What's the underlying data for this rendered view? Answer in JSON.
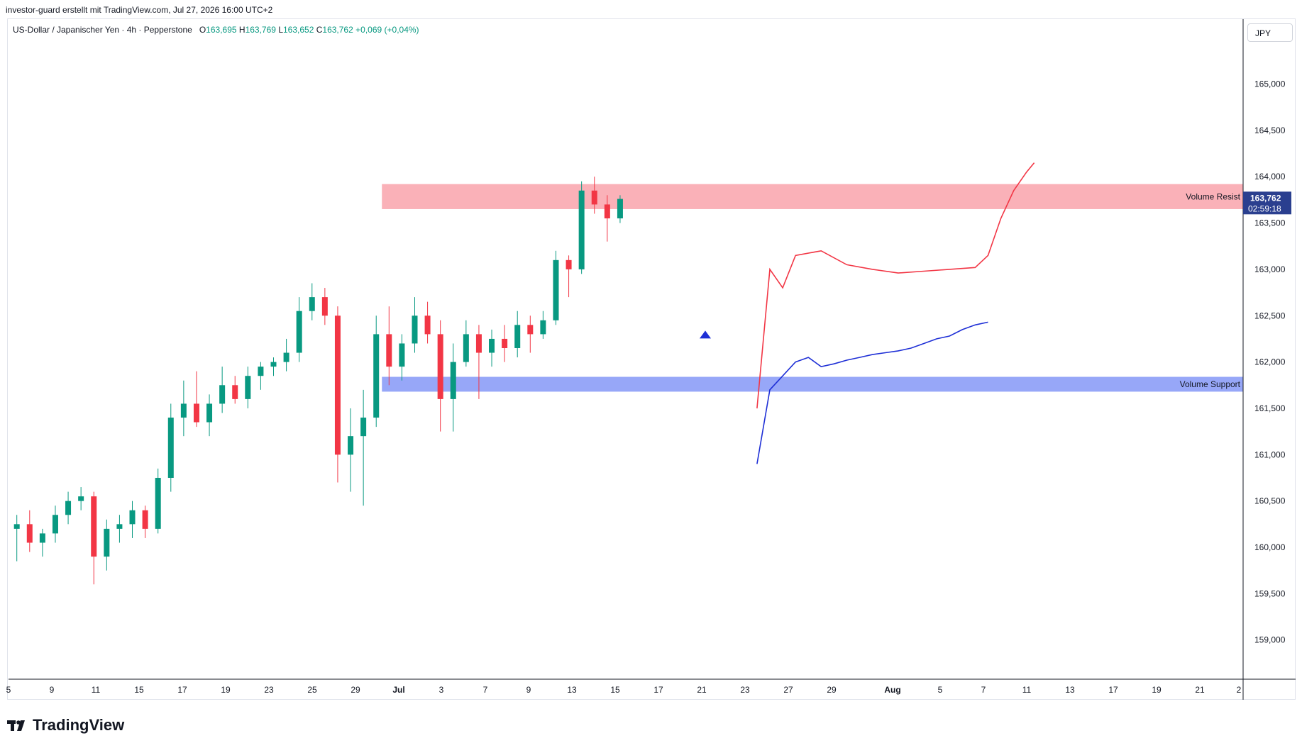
{
  "header": {
    "attribution": "investor-guard erstellt mit TradingView.com, Jul 27, 2026 16:00 UTC+2"
  },
  "legend": {
    "symbol": "US-Dollar / Japanischer Yen · 4h · Pepperstone",
    "o_label": "O",
    "o": "163,695",
    "h_label": "H",
    "h": "163,769",
    "l_label": "L",
    "l": "163,652",
    "c_label": "C",
    "c": "163,762",
    "change": "+0,069 (+0,04%)"
  },
  "currency_button": "JPY",
  "last_price": {
    "value": "163,762",
    "countdown": "02:59:18"
  },
  "brand": {
    "name": "TradingView"
  },
  "colors": {
    "up": "#089981",
    "down": "#f23645",
    "resistance_zone": "#f9a3ab",
    "support_zone": "#8c9df7",
    "upper_line": "#f23645",
    "lower_line": "#1e2fd6",
    "price_tag": "#2a3f8f"
  },
  "chart_data": {
    "type": "candlestick",
    "symbol": "USDJPY",
    "timeframe": "4h",
    "y_axis": {
      "ticks": [
        "159,000",
        "159,500",
        "160,000",
        "160,500",
        "161,000",
        "161,500",
        "162,000",
        "162,500",
        "163,000",
        "163,500",
        "164,000",
        "164,500",
        "165,000"
      ],
      "ylim": [
        158.6,
        165.7
      ]
    },
    "x_axis": {
      "ticks": [
        "5",
        "9",
        "11",
        "15",
        "17",
        "19",
        "23",
        "25",
        "29",
        "Jul",
        "3",
        "7",
        "9",
        "13",
        "15",
        "17",
        "21",
        "23",
        "27",
        "29",
        "Aug",
        "5",
        "7",
        "11",
        "13",
        "17",
        "19",
        "21",
        "2"
      ]
    },
    "zones": [
      {
        "name": "Volume Resist",
        "from": 163.65,
        "to": 163.92
      },
      {
        "name": "Volume Support",
        "from": 161.68,
        "to": 161.84
      }
    ],
    "signal_marker": {
      "type": "triangle-up",
      "date": "Jul 21",
      "price": 162.3
    },
    "series": [
      {
        "name": "",
        "role": "upper-band",
        "points": [
          [
            61,
            161.5
          ],
          [
            62,
            163.0
          ],
          [
            63,
            162.8
          ],
          [
            64,
            163.15
          ],
          [
            66,
            163.2
          ],
          [
            68,
            163.05
          ],
          [
            70,
            163.0
          ],
          [
            72,
            162.96
          ],
          [
            74,
            162.98
          ],
          [
            76,
            163.0
          ],
          [
            78,
            163.02
          ],
          [
            79,
            163.15
          ],
          [
            80,
            163.55
          ],
          [
            81,
            163.85
          ],
          [
            82,
            164.05
          ],
          [
            82.6,
            164.15
          ]
        ]
      },
      {
        "name": "",
        "role": "lower-band",
        "points": [
          [
            61,
            160.9
          ],
          [
            62,
            161.7
          ],
          [
            63,
            161.85
          ],
          [
            64,
            162.0
          ],
          [
            65,
            162.05
          ],
          [
            66,
            161.95
          ],
          [
            67,
            161.98
          ],
          [
            68,
            162.02
          ],
          [
            69,
            162.05
          ],
          [
            70,
            162.08
          ],
          [
            71,
            162.1
          ],
          [
            72,
            162.12
          ],
          [
            73,
            162.15
          ],
          [
            74,
            162.2
          ],
          [
            75,
            162.25
          ],
          [
            76,
            162.28
          ],
          [
            77,
            162.35
          ],
          [
            78,
            162.4
          ],
          [
            79,
            162.43
          ]
        ]
      },
      {
        "name": "",
        "role": "daily-ohlc",
        "points": [
          {
            "x": 0,
            "o": 160.2,
            "h": 160.35,
            "l": 159.85,
            "c": 160.25
          },
          {
            "x": 1,
            "o": 160.25,
            "h": 160.4,
            "l": 159.95,
            "c": 160.05
          },
          {
            "x": 2,
            "o": 160.05,
            "h": 160.2,
            "l": 159.9,
            "c": 160.15
          },
          {
            "x": 3,
            "o": 160.15,
            "h": 160.45,
            "l": 160.05,
            "c": 160.35
          },
          {
            "x": 4,
            "o": 160.35,
            "h": 160.6,
            "l": 160.25,
            "c": 160.5
          },
          {
            "x": 5,
            "o": 160.5,
            "h": 160.65,
            "l": 160.4,
            "c": 160.55
          },
          {
            "x": 6,
            "o": 160.55,
            "h": 160.6,
            "l": 159.6,
            "c": 159.9
          },
          {
            "x": 7,
            "o": 159.9,
            "h": 160.3,
            "l": 159.75,
            "c": 160.2
          },
          {
            "x": 8,
            "o": 160.2,
            "h": 160.35,
            "l": 160.05,
            "c": 160.25
          },
          {
            "x": 9,
            "o": 160.25,
            "h": 160.5,
            "l": 160.1,
            "c": 160.4
          },
          {
            "x": 10,
            "o": 160.4,
            "h": 160.45,
            "l": 160.1,
            "c": 160.2
          },
          {
            "x": 11,
            "o": 160.2,
            "h": 160.85,
            "l": 160.15,
            "c": 160.75
          },
          {
            "x": 12,
            "o": 160.75,
            "h": 161.55,
            "l": 160.6,
            "c": 161.4
          },
          {
            "x": 13,
            "o": 161.4,
            "h": 161.8,
            "l": 161.2,
            "c": 161.55
          },
          {
            "x": 14,
            "o": 161.55,
            "h": 161.9,
            "l": 161.3,
            "c": 161.35
          },
          {
            "x": 15,
            "o": 161.35,
            "h": 161.65,
            "l": 161.2,
            "c": 161.55
          },
          {
            "x": 16,
            "o": 161.55,
            "h": 161.95,
            "l": 161.45,
            "c": 161.75
          },
          {
            "x": 17,
            "o": 161.75,
            "h": 161.85,
            "l": 161.55,
            "c": 161.6
          },
          {
            "x": 18,
            "o": 161.6,
            "h": 161.95,
            "l": 161.5,
            "c": 161.85
          },
          {
            "x": 19,
            "o": 161.85,
            "h": 162.0,
            "l": 161.7,
            "c": 161.95
          },
          {
            "x": 20,
            "o": 161.95,
            "h": 162.05,
            "l": 161.85,
            "c": 162.0
          },
          {
            "x": 21,
            "o": 162.0,
            "h": 162.25,
            "l": 161.9,
            "c": 162.1
          },
          {
            "x": 22,
            "o": 162.1,
            "h": 162.7,
            "l": 162.0,
            "c": 162.55
          },
          {
            "x": 23,
            "o": 162.55,
            "h": 162.85,
            "l": 162.45,
            "c": 162.7
          },
          {
            "x": 24,
            "o": 162.7,
            "h": 162.8,
            "l": 162.4,
            "c": 162.5
          },
          {
            "x": 25,
            "o": 162.5,
            "h": 162.6,
            "l": 160.7,
            "c": 161.0
          },
          {
            "x": 26,
            "o": 161.0,
            "h": 161.5,
            "l": 160.6,
            "c": 161.2
          },
          {
            "x": 27,
            "o": 161.2,
            "h": 161.7,
            "l": 160.45,
            "c": 161.4
          },
          {
            "x": 28,
            "o": 161.4,
            "h": 162.5,
            "l": 161.3,
            "c": 162.3
          },
          {
            "x": 29,
            "o": 162.3,
            "h": 162.6,
            "l": 161.75,
            "c": 161.95
          },
          {
            "x": 30,
            "o": 161.95,
            "h": 162.3,
            "l": 161.8,
            "c": 162.2
          },
          {
            "x": 31,
            "o": 162.2,
            "h": 162.7,
            "l": 162.1,
            "c": 162.5
          },
          {
            "x": 32,
            "o": 162.5,
            "h": 162.65,
            "l": 162.2,
            "c": 162.3
          },
          {
            "x": 33,
            "o": 162.3,
            "h": 162.45,
            "l": 161.25,
            "c": 161.6
          },
          {
            "x": 34,
            "o": 161.6,
            "h": 162.2,
            "l": 161.25,
            "c": 162.0
          },
          {
            "x": 35,
            "o": 162.0,
            "h": 162.45,
            "l": 161.95,
            "c": 162.3
          },
          {
            "x": 36,
            "o": 162.3,
            "h": 162.4,
            "l": 161.6,
            "c": 162.1
          },
          {
            "x": 37,
            "o": 162.1,
            "h": 162.35,
            "l": 161.95,
            "c": 162.25
          },
          {
            "x": 38,
            "o": 162.25,
            "h": 162.4,
            "l": 162.0,
            "c": 162.15
          },
          {
            "x": 39,
            "o": 162.15,
            "h": 162.55,
            "l": 162.05,
            "c": 162.4
          },
          {
            "x": 40,
            "o": 162.4,
            "h": 162.5,
            "l": 162.1,
            "c": 162.3
          },
          {
            "x": 41,
            "o": 162.3,
            "h": 162.55,
            "l": 162.25,
            "c": 162.45
          },
          {
            "x": 42,
            "o": 162.45,
            "h": 163.2,
            "l": 162.4,
            "c": 163.1
          },
          {
            "x": 43,
            "o": 163.1,
            "h": 163.15,
            "l": 162.7,
            "c": 163.0
          },
          {
            "x": 44,
            "o": 163.0,
            "h": 163.95,
            "l": 162.95,
            "c": 163.85
          },
          {
            "x": 45,
            "o": 163.85,
            "h": 164.0,
            "l": 163.6,
            "c": 163.7
          },
          {
            "x": 46,
            "o": 163.7,
            "h": 163.8,
            "l": 163.3,
            "c": 163.55
          },
          {
            "x": 47,
            "o": 163.55,
            "h": 163.8,
            "l": 163.5,
            "c": 163.76
          }
        ]
      }
    ]
  }
}
